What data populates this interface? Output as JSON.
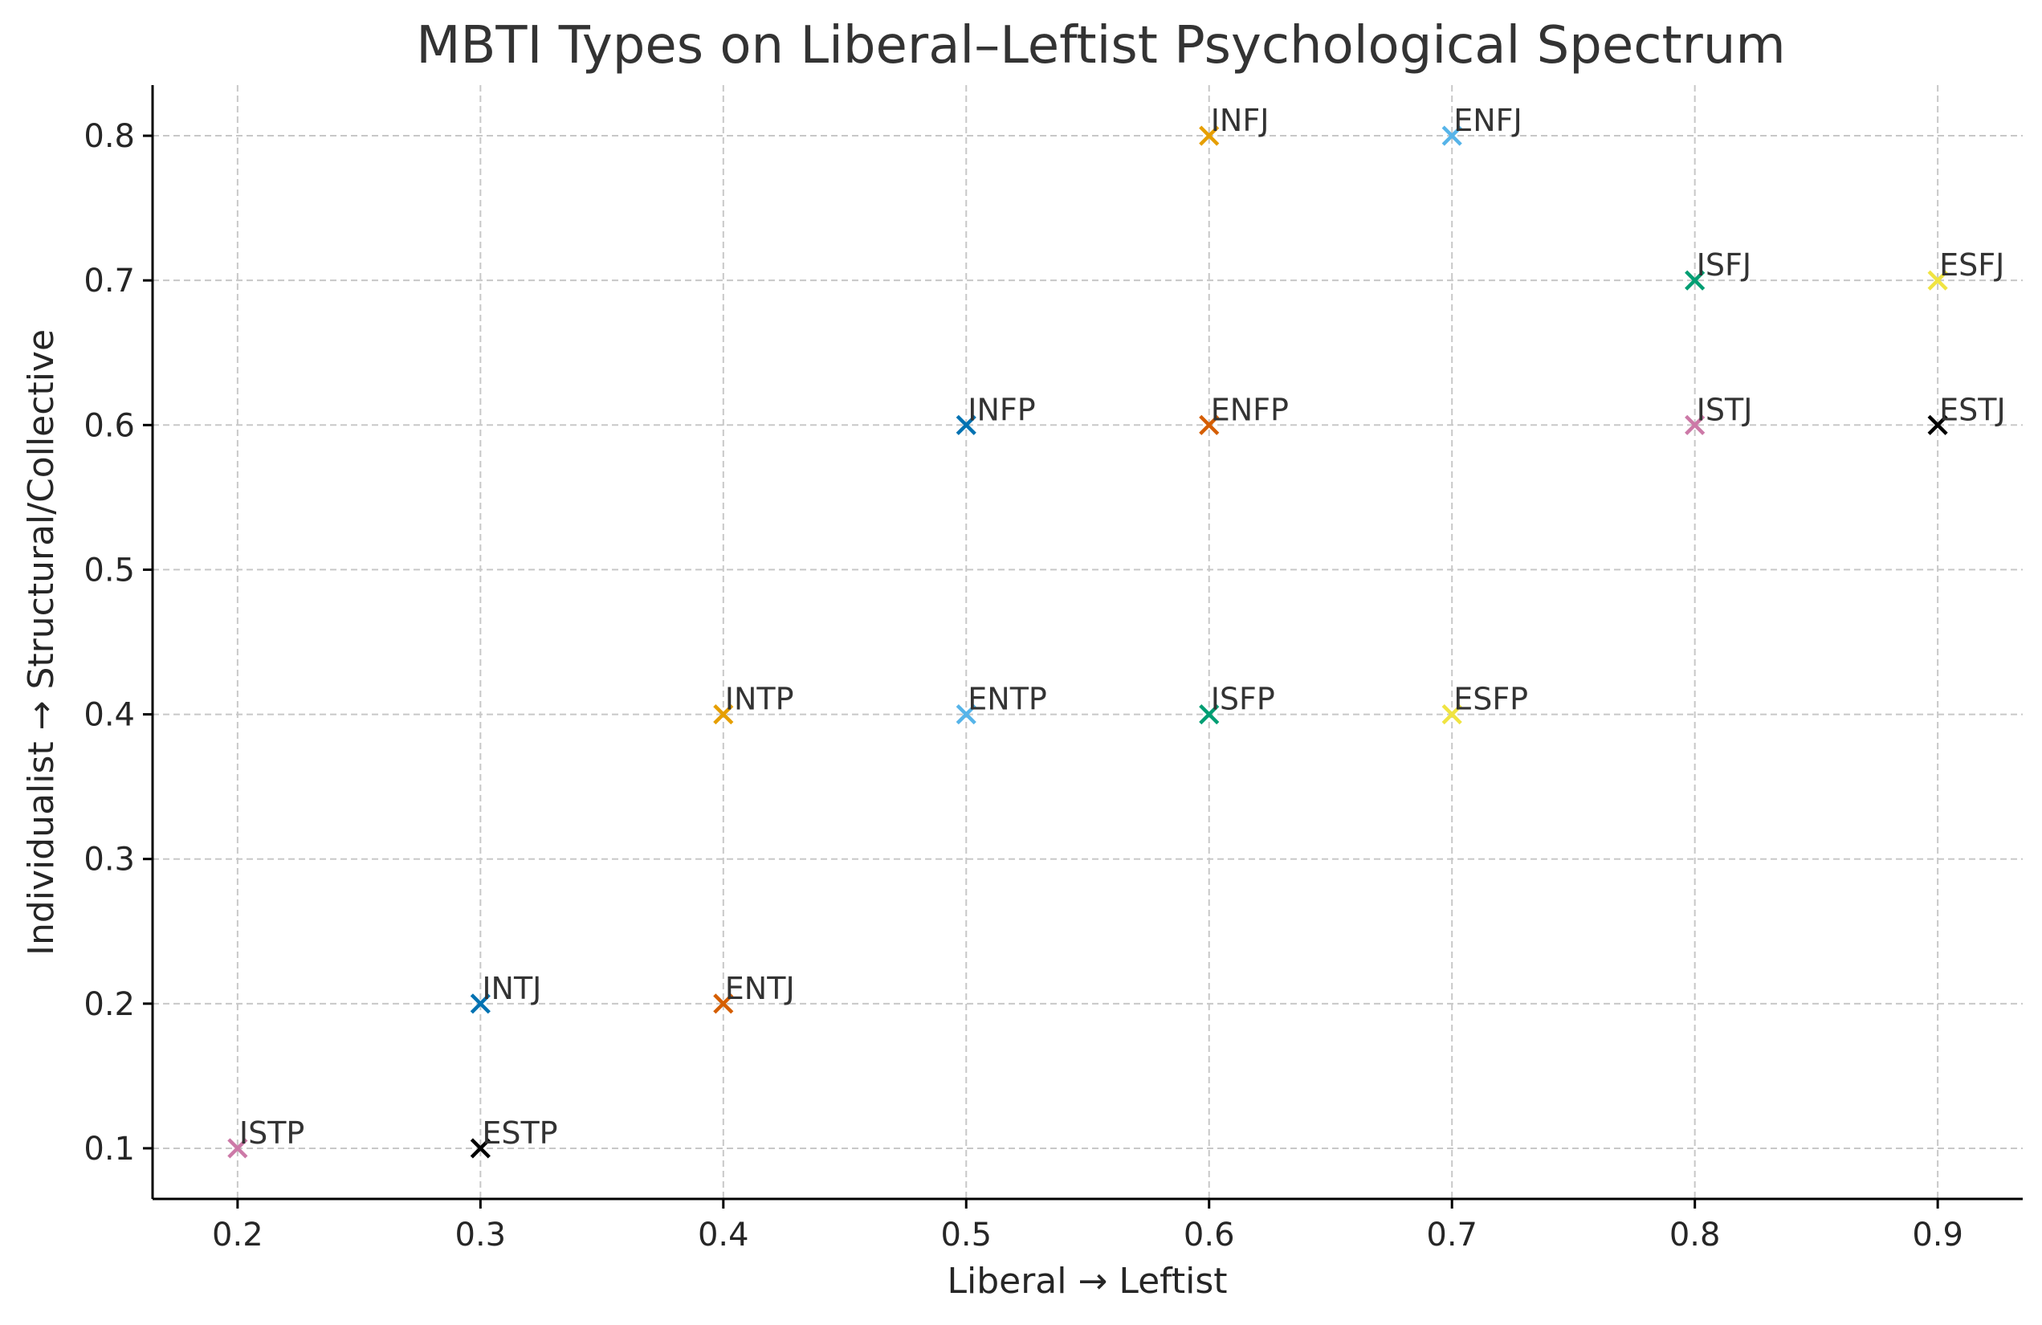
{
  "chart_data": {
    "type": "scatter",
    "title": "MBTI Types on Liberal–Leftist Psychological Spectrum",
    "xlabel": "Liberal → Leftist",
    "ylabel": "Individualist → Structural/Collective",
    "xlim": [
      0.165,
      0.935
    ],
    "ylim": [
      0.065,
      0.835
    ],
    "xticks": [
      "0.2",
      "0.3",
      "0.4",
      "0.5",
      "0.6",
      "0.7",
      "0.8",
      "0.9"
    ],
    "yticks": [
      "0.1",
      "0.2",
      "0.3",
      "0.4",
      "0.5",
      "0.6",
      "0.7",
      "0.8"
    ],
    "grid": true,
    "marker": "x",
    "points": [
      {
        "label": "INTJ",
        "x": 0.3,
        "y": 0.2,
        "color": "#0072B2"
      },
      {
        "label": "ENTJ",
        "x": 0.4,
        "y": 0.2,
        "color": "#D55E00"
      },
      {
        "label": "INTP",
        "x": 0.4,
        "y": 0.4,
        "color": "#E69F00"
      },
      {
        "label": "ENTP",
        "x": 0.5,
        "y": 0.4,
        "color": "#56B4E9"
      },
      {
        "label": "INFJ",
        "x": 0.6,
        "y": 0.8,
        "color": "#E69F00"
      },
      {
        "label": "ENFJ",
        "x": 0.7,
        "y": 0.8,
        "color": "#56B4E9"
      },
      {
        "label": "INFP",
        "x": 0.5,
        "y": 0.6,
        "color": "#0072B2"
      },
      {
        "label": "ENFP",
        "x": 0.6,
        "y": 0.6,
        "color": "#D55E00"
      },
      {
        "label": "ISTJ",
        "x": 0.8,
        "y": 0.6,
        "color": "#CC79A7"
      },
      {
        "label": "ESTJ",
        "x": 0.9,
        "y": 0.6,
        "color": "#000000"
      },
      {
        "label": "ISFJ",
        "x": 0.8,
        "y": 0.7,
        "color": "#009E73"
      },
      {
        "label": "ESFJ",
        "x": 0.9,
        "y": 0.7,
        "color": "#F0E442"
      },
      {
        "label": "ISTP",
        "x": 0.2,
        "y": 0.1,
        "color": "#CC79A7"
      },
      {
        "label": "ESTP",
        "x": 0.3,
        "y": 0.1,
        "color": "#000000"
      },
      {
        "label": "ISFP",
        "x": 0.6,
        "y": 0.4,
        "color": "#009E73"
      },
      {
        "label": "ESFP",
        "x": 0.7,
        "y": 0.4,
        "color": "#F0E442"
      }
    ]
  }
}
